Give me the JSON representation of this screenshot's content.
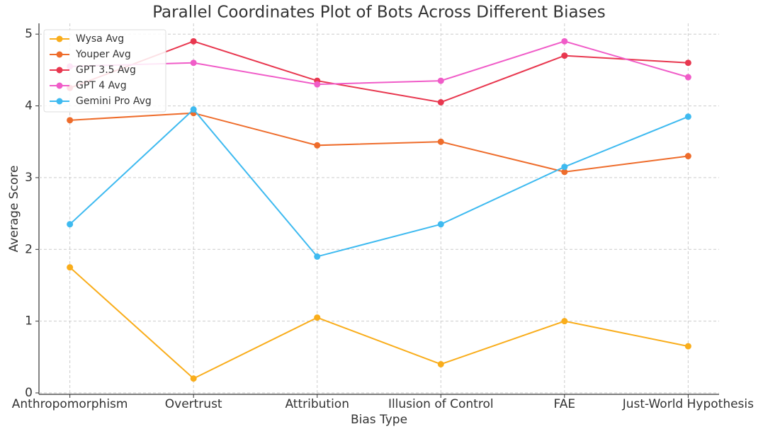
{
  "chart_data": {
    "type": "line",
    "title": "Parallel Coordinates Plot of Bots Across Different Biases",
    "x_label": "Bias Type",
    "y_label": "Average Score",
    "categories": [
      "Anthropomorphism",
      "Overtrust",
      "Attribution",
      "Illusion of Control",
      "FAE",
      "Just-World Hypothesis"
    ],
    "series": [
      {
        "name": "Wysa Avg",
        "color": "#f9ad1b",
        "values": [
          1.75,
          0.2,
          1.05,
          0.4,
          1.0,
          0.65
        ]
      },
      {
        "name": "Youper Avg",
        "color": "#ee6c2b",
        "values": [
          3.8,
          3.9,
          3.45,
          3.5,
          3.08,
          3.3
        ]
      },
      {
        "name": "GPT 3.5 Avg",
        "color": "#e8374f",
        "values": [
          4.25,
          4.9,
          4.35,
          4.05,
          4.7,
          4.6
        ]
      },
      {
        "name": "GPT 4 Avg",
        "color": "#f05cc8",
        "values": [
          4.55,
          4.6,
          4.3,
          4.35,
          4.9,
          4.4
        ]
      },
      {
        "name": "Gemini Pro Avg",
        "color": "#3ebaf0",
        "values": [
          2.35,
          3.95,
          1.9,
          2.35,
          3.15,
          3.85
        ]
      }
    ],
    "ylim": [
      0,
      5.15
    ],
    "yticks": [
      0,
      1,
      2,
      3,
      4,
      5
    ],
    "grid": true,
    "legend": "upper left"
  }
}
